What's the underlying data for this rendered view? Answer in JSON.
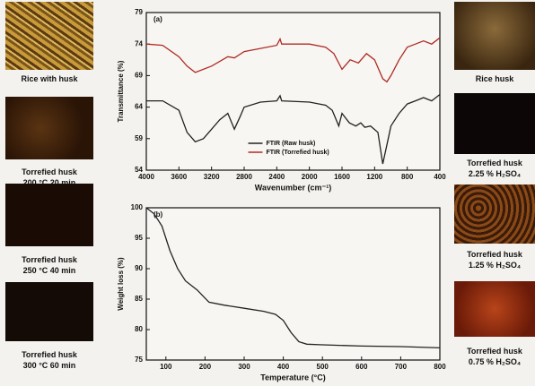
{
  "photos": {
    "left": [
      {
        "lines": [
          "Rice with husk"
        ]
      },
      {
        "lines": [
          "Torrefied husk",
          "200 °C 20 min"
        ]
      },
      {
        "lines": [
          "Torrefied husk",
          "250 °C 40 min"
        ]
      },
      {
        "lines": [
          "Torrefied husk",
          "300 °C 60 min"
        ]
      }
    ],
    "right": [
      {
        "lines": [
          "Rice husk"
        ]
      },
      {
        "lines": [
          "Torrefied husk",
          "2.25 % H₂SO₄"
        ]
      },
      {
        "lines": [
          "Torrefied husk",
          "1.25 % H₂SO₄"
        ]
      },
      {
        "lines": [
          "Torrefied husk",
          "0.75 % H₂SO₄"
        ]
      }
    ]
  },
  "chart_data": [
    {
      "type": "line",
      "panel_label": "(a)",
      "x_label": "Wavenumber (cm⁻¹)",
      "y_label": "Transmittance (%)",
      "xlim": [
        4000,
        400
      ],
      "xticks": [
        4000,
        3600,
        3200,
        2800,
        2400,
        2000,
        1600,
        1200,
        800,
        400
      ],
      "ylim": [
        54,
        79
      ],
      "yticks": [
        54,
        59,
        64,
        69,
        74,
        79
      ],
      "legend": "lower center",
      "series": [
        {
          "name": "FTIR (Raw husk)",
          "color": "#222222",
          "x": [
            4000,
            3800,
            3600,
            3500,
            3400,
            3300,
            3100,
            3000,
            2920,
            2850,
            2800,
            2600,
            2400,
            2360,
            2340,
            2000,
            1800,
            1720,
            1640,
            1600,
            1510,
            1430,
            1370,
            1320,
            1250,
            1160,
            1100,
            1050,
            1000,
            900,
            800,
            700,
            600,
            500,
            400
          ],
          "values": [
            65,
            65,
            63.5,
            60,
            58.5,
            59,
            62,
            63,
            60.5,
            62.5,
            64,
            64.8,
            65,
            65.8,
            65,
            64.8,
            64.3,
            63.5,
            61,
            63,
            61.5,
            61,
            61.5,
            60.8,
            61,
            60,
            55,
            58,
            61,
            63,
            64.5,
            65,
            65.5,
            65,
            66
          ]
        },
        {
          "name": "FTIR (Torrefied husk)",
          "color": "#b02a24",
          "x": [
            4000,
            3800,
            3600,
            3500,
            3400,
            3200,
            3000,
            2920,
            2800,
            2400,
            2360,
            2340,
            2000,
            1800,
            1700,
            1600,
            1500,
            1400,
            1300,
            1200,
            1100,
            1050,
            1000,
            900,
            800,
            700,
            600,
            500,
            400
          ],
          "values": [
            74,
            73.8,
            72,
            70.5,
            69.5,
            70.5,
            72,
            71.8,
            72.8,
            73.8,
            74.8,
            74,
            74,
            73.5,
            72.5,
            70,
            71.5,
            71,
            72.5,
            71.5,
            68.5,
            68,
            69,
            71.5,
            73.5,
            74,
            74.5,
            74,
            75
          ]
        }
      ]
    },
    {
      "type": "line",
      "panel_label": "(b)",
      "x_label": "Temperature (°C)",
      "y_label": "Weight loss (%)",
      "xlim": [
        50,
        800
      ],
      "xticks": [
        100,
        200,
        300,
        400,
        500,
        600,
        700,
        800
      ],
      "ylim": [
        75,
        100
      ],
      "yticks": [
        75,
        80,
        85,
        90,
        95,
        100
      ],
      "series": [
        {
          "color": "#222222",
          "x": [
            50,
            70,
            90,
            110,
            130,
            150,
            180,
            210,
            250,
            300,
            350,
            380,
            400,
            420,
            440,
            460,
            500,
            600,
            700,
            800
          ],
          "values": [
            100,
            99,
            97,
            93,
            90,
            88,
            86.5,
            84.5,
            84,
            83.5,
            83,
            82.5,
            81.5,
            79.5,
            78,
            77.6,
            77.5,
            77.3,
            77.2,
            77
          ]
        }
      ]
    }
  ]
}
